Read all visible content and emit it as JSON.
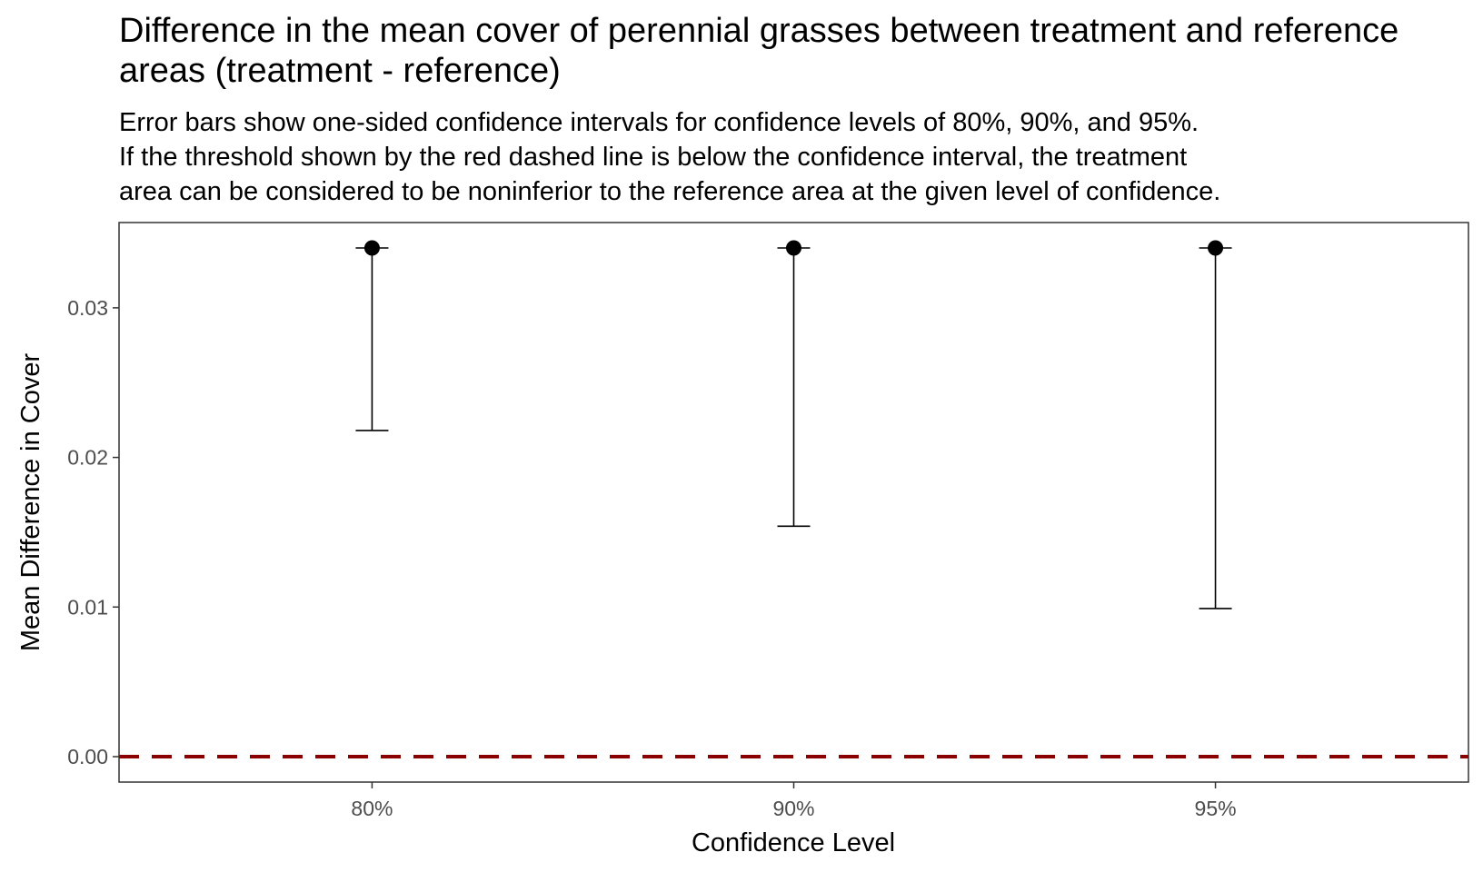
{
  "chart_data": {
    "type": "errorbar",
    "title": "Difference in the mean cover of perennial grasses between treatment and reference areas (treatment - reference)",
    "subtitle_lines": [
      "Error bars show one-sided confidence intervals for confidence levels of 80%, 90%, and 95%.",
      "If the threshold shown by the red dashed line is below the confidence interval, the treatment",
      "area can be considered to be noninferior to the reference area at the given level of confidence."
    ],
    "xlabel": "Confidence Level",
    "ylabel": "Mean Difference in Cover",
    "categories": [
      "80%",
      "90%",
      "95%"
    ],
    "estimate": [
      0.034,
      0.034,
      0.034
    ],
    "lower": [
      0.0218,
      0.0154,
      0.0099
    ],
    "upper": [
      0.034,
      0.034,
      0.034
    ],
    "threshold": 0.0,
    "threshold_color": "#8B0000",
    "ylim": [
      -0.0017,
      0.0357
    ],
    "yticks": [
      0.0,
      0.01,
      0.02,
      0.03
    ],
    "ytick_labels": [
      "0.00",
      "0.01",
      "0.02",
      "0.03"
    ],
    "grid": false
  }
}
